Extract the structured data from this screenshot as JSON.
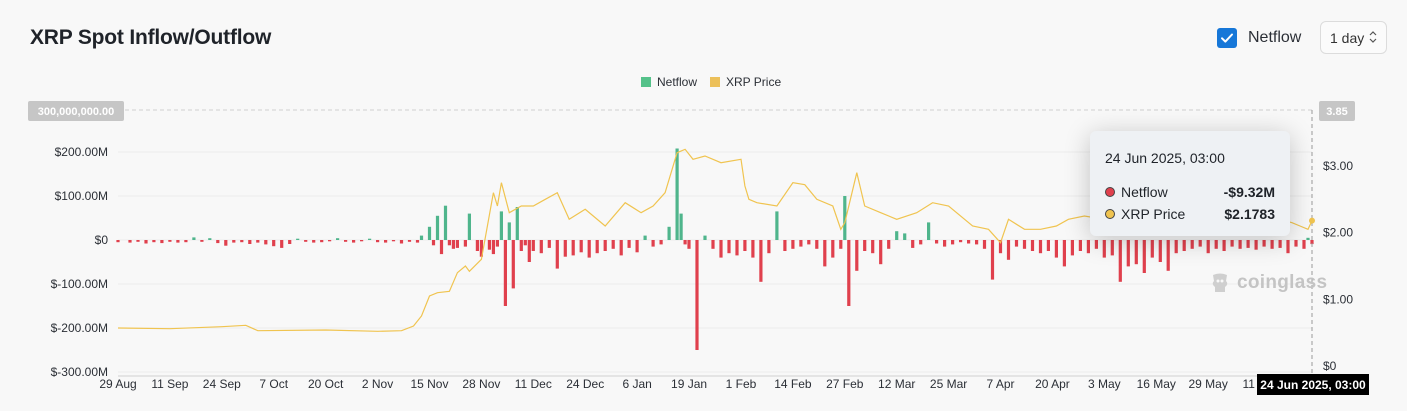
{
  "header": {
    "title": "XRP Spot Inflow/Outflow",
    "netflow_toggle_label": "Netflow",
    "interval": "1 day"
  },
  "colors": {
    "inflow": "#4fb58c",
    "outflow": "#e0404d",
    "price": "#f0c450",
    "netflow_legend": "#55c28a",
    "price_legend": "#ecc05a",
    "accent": "#1677d8"
  },
  "tooltip": {
    "date": "24 Jun 2025, 03:00",
    "rows": [
      {
        "name": "Netflow",
        "value": "-$9.32M",
        "dot": "#e0404d"
      },
      {
        "name": "XRP Price",
        "value": "$2.1783",
        "dot": "#f0c450"
      }
    ]
  },
  "watermark": "coinglass",
  "chart_data": {
    "type": "bar",
    "legend": [
      "Netflow",
      "XRP Price"
    ],
    "legend_position": "top-center",
    "grid": true,
    "y_left": {
      "ticks": [
        "$200.00M",
        "$100.00M",
        "$0",
        "$-100.00M",
        "$-200.00M",
        "$-300.00M"
      ],
      "tick_values": [
        200,
        100,
        0,
        -100,
        -200,
        -300
      ],
      "range": [
        -300,
        300
      ],
      "top_marker": "300,000,000.00",
      "unit": "M USD"
    },
    "y_right": {
      "ticks": [
        "$3.00",
        "$2.00",
        "$1.00",
        "$0"
      ],
      "tick_values": [
        3,
        2,
        1,
        0
      ],
      "range": [
        0,
        3.85
      ],
      "top_marker": "3.85"
    },
    "x_axis": {
      "range": [
        "2024-08-29",
        "2025-06-24"
      ],
      "ticks": [
        {
          "label": "29 Aug",
          "date": "2024-08-29"
        },
        {
          "label": "11 Sep",
          "date": "2024-09-11"
        },
        {
          "label": "24 Sep",
          "date": "2024-09-24"
        },
        {
          "label": "7 Oct",
          "date": "2024-10-07"
        },
        {
          "label": "20 Oct",
          "date": "2024-10-20"
        },
        {
          "label": "2 Nov",
          "date": "2024-11-02"
        },
        {
          "label": "15 Nov",
          "date": "2024-11-15"
        },
        {
          "label": "28 Nov",
          "date": "2024-11-28"
        },
        {
          "label": "11 Dec",
          "date": "2024-12-11"
        },
        {
          "label": "24 Dec",
          "date": "2024-12-24"
        },
        {
          "label": "6 Jan",
          "date": "2025-01-06"
        },
        {
          "label": "19 Jan",
          "date": "2025-01-19"
        },
        {
          "label": "1 Feb",
          "date": "2025-02-01"
        },
        {
          "label": "14 Feb",
          "date": "2025-02-14"
        },
        {
          "label": "27 Feb",
          "date": "2025-02-27"
        },
        {
          "label": "12 Mar",
          "date": "2025-03-12"
        },
        {
          "label": "25 Mar",
          "date": "2025-03-25"
        },
        {
          "label": "7 Apr",
          "date": "2025-04-07"
        },
        {
          "label": "20 Apr",
          "date": "2025-04-20"
        },
        {
          "label": "3 May",
          "date": "2025-05-03"
        },
        {
          "label": "16 May",
          "date": "2025-05-16"
        },
        {
          "label": "29 May",
          "date": "2025-05-29"
        },
        {
          "label": "11 Jun",
          "date": "2025-06-11"
        }
      ],
      "hover_label": "24 Jun 2025, 03:00"
    },
    "series": [
      {
        "name": "Netflow",
        "kind": "bar",
        "unit": "M USD",
        "points": [
          [
            "2024-08-29",
            -5
          ],
          [
            "2024-09-01",
            -6
          ],
          [
            "2024-09-03",
            -4
          ],
          [
            "2024-09-05",
            -8
          ],
          [
            "2024-09-07",
            -5
          ],
          [
            "2024-09-09",
            -7
          ],
          [
            "2024-09-11",
            -4
          ],
          [
            "2024-09-13",
            -6
          ],
          [
            "2024-09-15",
            -5
          ],
          [
            "2024-09-17",
            6
          ],
          [
            "2024-09-19",
            -4
          ],
          [
            "2024-09-21",
            4
          ],
          [
            "2024-09-23",
            -7
          ],
          [
            "2024-09-25",
            -13
          ],
          [
            "2024-09-27",
            -6
          ],
          [
            "2024-09-29",
            -5
          ],
          [
            "2024-10-01",
            -9
          ],
          [
            "2024-10-03",
            -6
          ],
          [
            "2024-10-05",
            -10
          ],
          [
            "2024-10-07",
            -14
          ],
          [
            "2024-10-09",
            -18
          ],
          [
            "2024-10-11",
            -9
          ],
          [
            "2024-10-13",
            3
          ],
          [
            "2024-10-15",
            -4
          ],
          [
            "2024-10-17",
            -6
          ],
          [
            "2024-10-19",
            -5
          ],
          [
            "2024-10-21",
            -3
          ],
          [
            "2024-10-23",
            4
          ],
          [
            "2024-10-25",
            -4
          ],
          [
            "2024-10-27",
            -6
          ],
          [
            "2024-10-29",
            -3
          ],
          [
            "2024-10-31",
            3
          ],
          [
            "2024-11-02",
            -5
          ],
          [
            "2024-11-04",
            -6
          ],
          [
            "2024-11-06",
            -3
          ],
          [
            "2024-11-08",
            -8
          ],
          [
            "2024-11-10",
            -4
          ],
          [
            "2024-11-12",
            -6
          ],
          [
            "2024-11-13",
            10
          ],
          [
            "2024-11-15",
            30
          ],
          [
            "2024-11-16",
            -12
          ],
          [
            "2024-11-17",
            55
          ],
          [
            "2024-11-18",
            -32
          ],
          [
            "2024-11-19",
            78
          ],
          [
            "2024-11-20",
            -12
          ],
          [
            "2024-11-21",
            -20
          ],
          [
            "2024-11-22",
            -18
          ],
          [
            "2024-11-24",
            -15
          ],
          [
            "2024-11-25",
            60
          ],
          [
            "2024-11-27",
            -25
          ],
          [
            "2024-11-28",
            -38
          ],
          [
            "2024-11-30",
            -22
          ],
          [
            "2024-12-01",
            -32
          ],
          [
            "2024-12-02",
            -15
          ],
          [
            "2024-12-03",
            65
          ],
          [
            "2024-12-04",
            -150
          ],
          [
            "2024-12-05",
            40
          ],
          [
            "2024-12-06",
            -110
          ],
          [
            "2024-12-07",
            75
          ],
          [
            "2024-12-08",
            -25
          ],
          [
            "2024-12-09",
            -12
          ],
          [
            "2024-12-10",
            -50
          ],
          [
            "2024-12-11",
            -25
          ],
          [
            "2024-12-13",
            -30
          ],
          [
            "2024-12-15",
            -18
          ],
          [
            "2024-12-17",
            -65
          ],
          [
            "2024-12-19",
            -38
          ],
          [
            "2024-12-21",
            -35
          ],
          [
            "2024-12-23",
            -28
          ],
          [
            "2024-12-25",
            -40
          ],
          [
            "2024-12-27",
            -30
          ],
          [
            "2024-12-29",
            -25
          ],
          [
            "2024-12-31",
            -20
          ],
          [
            "2025-01-02",
            -35
          ],
          [
            "2025-01-04",
            -18
          ],
          [
            "2025-01-06",
            -28
          ],
          [
            "2025-01-08",
            10
          ],
          [
            "2025-01-10",
            -15
          ],
          [
            "2025-01-12",
            -10
          ],
          [
            "2025-01-14",
            30
          ],
          [
            "2025-01-16",
            208
          ],
          [
            "2025-01-17",
            60
          ],
          [
            "2025-01-18",
            -10
          ],
          [
            "2025-01-19",
            -20
          ],
          [
            "2025-01-21",
            -250
          ],
          [
            "2025-01-23",
            10
          ],
          [
            "2025-01-25",
            -20
          ],
          [
            "2025-01-27",
            -40
          ],
          [
            "2025-01-29",
            -30
          ],
          [
            "2025-01-31",
            -35
          ],
          [
            "2025-02-02",
            -25
          ],
          [
            "2025-02-04",
            -40
          ],
          [
            "2025-02-06",
            -95
          ],
          [
            "2025-02-08",
            -30
          ],
          [
            "2025-02-10",
            65
          ],
          [
            "2025-02-12",
            -25
          ],
          [
            "2025-02-14",
            -20
          ],
          [
            "2025-02-16",
            -15
          ],
          [
            "2025-02-18",
            -10
          ],
          [
            "2025-02-20",
            -20
          ],
          [
            "2025-02-22",
            -60
          ],
          [
            "2025-02-24",
            -40
          ],
          [
            "2025-02-26",
            -20
          ],
          [
            "2025-02-27",
            100
          ],
          [
            "2025-02-28",
            -150
          ],
          [
            "2025-03-02",
            -70
          ],
          [
            "2025-03-04",
            -25
          ],
          [
            "2025-03-06",
            -30
          ],
          [
            "2025-03-08",
            -55
          ],
          [
            "2025-03-10",
            -20
          ],
          [
            "2025-03-12",
            20
          ],
          [
            "2025-03-14",
            15
          ],
          [
            "2025-03-16",
            -18
          ],
          [
            "2025-03-18",
            -10
          ],
          [
            "2025-03-20",
            40
          ],
          [
            "2025-03-22",
            -8
          ],
          [
            "2025-03-24",
            -15
          ],
          [
            "2025-03-26",
            -10
          ],
          [
            "2025-03-28",
            -5
          ],
          [
            "2025-03-30",
            -8
          ],
          [
            "2025-04-01",
            -10
          ],
          [
            "2025-04-03",
            -20
          ],
          [
            "2025-04-05",
            -90
          ],
          [
            "2025-04-07",
            -30
          ],
          [
            "2025-04-09",
            -45
          ],
          [
            "2025-04-11",
            -15
          ],
          [
            "2025-04-13",
            -20
          ],
          [
            "2025-04-15",
            -25
          ],
          [
            "2025-04-17",
            -30
          ],
          [
            "2025-04-19",
            -25
          ],
          [
            "2025-04-21",
            -40
          ],
          [
            "2025-04-23",
            -60
          ],
          [
            "2025-04-25",
            -35
          ],
          [
            "2025-04-27",
            -25
          ],
          [
            "2025-04-29",
            -30
          ],
          [
            "2025-05-01",
            -20
          ],
          [
            "2025-05-03",
            -40
          ],
          [
            "2025-05-05",
            -35
          ],
          [
            "2025-05-07",
            -95
          ],
          [
            "2025-05-09",
            -60
          ],
          [
            "2025-05-11",
            -55
          ],
          [
            "2025-05-13",
            -75
          ],
          [
            "2025-05-15",
            -40
          ],
          [
            "2025-05-17",
            -50
          ],
          [
            "2025-05-19",
            -70
          ],
          [
            "2025-05-21",
            -30
          ],
          [
            "2025-05-23",
            -25
          ],
          [
            "2025-05-25",
            -20
          ],
          [
            "2025-05-27",
            -15
          ],
          [
            "2025-05-29",
            -30
          ],
          [
            "2025-05-31",
            -20
          ],
          [
            "2025-06-02",
            -25
          ],
          [
            "2025-06-04",
            -15
          ],
          [
            "2025-06-06",
            -20
          ],
          [
            "2025-06-08",
            -18
          ],
          [
            "2025-06-10",
            -22
          ],
          [
            "2025-06-12",
            -15
          ],
          [
            "2025-06-14",
            -20
          ],
          [
            "2025-06-16",
            -18
          ],
          [
            "2025-06-18",
            -30
          ],
          [
            "2025-06-20",
            -15
          ],
          [
            "2025-06-22",
            -20
          ],
          [
            "2025-06-23",
            5
          ],
          [
            "2025-06-24",
            -9.32
          ]
        ]
      },
      {
        "name": "XRP Price",
        "kind": "line",
        "unit": "USD",
        "points": [
          [
            "2024-08-29",
            0.57
          ],
          [
            "2024-09-11",
            0.56
          ],
          [
            "2024-09-24",
            0.59
          ],
          [
            "2024-09-30",
            0.61
          ],
          [
            "2024-10-03",
            0.53
          ],
          [
            "2024-10-20",
            0.54
          ],
          [
            "2024-11-02",
            0.52
          ],
          [
            "2024-11-08",
            0.53
          ],
          [
            "2024-11-11",
            0.6
          ],
          [
            "2024-11-13",
            0.75
          ],
          [
            "2024-11-15",
            1.05
          ],
          [
            "2024-11-17",
            1.1
          ],
          [
            "2024-11-20",
            1.12
          ],
          [
            "2024-11-22",
            1.4
          ],
          [
            "2024-11-24",
            1.5
          ],
          [
            "2024-11-25",
            1.42
          ],
          [
            "2024-11-28",
            1.6
          ],
          [
            "2024-12-01",
            2.6
          ],
          [
            "2024-12-02",
            2.4
          ],
          [
            "2024-12-03",
            2.75
          ],
          [
            "2024-12-05",
            2.3
          ],
          [
            "2024-12-08",
            2.4
          ],
          [
            "2024-12-11",
            2.4
          ],
          [
            "2024-12-14",
            2.5
          ],
          [
            "2024-12-17",
            2.6
          ],
          [
            "2024-12-20",
            2.2
          ],
          [
            "2024-12-24",
            2.35
          ],
          [
            "2024-12-29",
            2.1
          ],
          [
            "2025-01-03",
            2.45
          ],
          [
            "2025-01-07",
            2.3
          ],
          [
            "2025-01-10",
            2.4
          ],
          [
            "2025-01-13",
            2.6
          ],
          [
            "2025-01-16",
            3.2
          ],
          [
            "2025-01-18",
            3.25
          ],
          [
            "2025-01-20",
            3.1
          ],
          [
            "2025-01-23",
            3.15
          ],
          [
            "2025-01-27",
            3.05
          ],
          [
            "2025-02-01",
            3.1
          ],
          [
            "2025-02-02",
            2.7
          ],
          [
            "2025-02-03",
            2.5
          ],
          [
            "2025-02-05",
            2.45
          ],
          [
            "2025-02-10",
            2.4
          ],
          [
            "2025-02-14",
            2.75
          ],
          [
            "2025-02-17",
            2.72
          ],
          [
            "2025-02-20",
            2.5
          ],
          [
            "2025-02-24",
            2.4
          ],
          [
            "2025-02-26",
            2.05
          ],
          [
            "2025-02-27",
            2.15
          ],
          [
            "2025-03-02",
            2.9
          ],
          [
            "2025-03-04",
            2.4
          ],
          [
            "2025-03-08",
            2.3
          ],
          [
            "2025-03-12",
            2.2
          ],
          [
            "2025-03-17",
            2.3
          ],
          [
            "2025-03-21",
            2.45
          ],
          [
            "2025-03-25",
            2.4
          ],
          [
            "2025-03-31",
            2.1
          ],
          [
            "2025-04-04",
            2.05
          ],
          [
            "2025-04-07",
            1.85
          ],
          [
            "2025-04-09",
            2.2
          ],
          [
            "2025-04-13",
            2.05
          ],
          [
            "2025-04-17",
            2.05
          ],
          [
            "2025-04-21",
            2.1
          ],
          [
            "2025-04-24",
            2.2
          ],
          [
            "2025-04-28",
            2.25
          ],
          [
            "2025-05-03",
            2.2
          ],
          [
            "2025-05-08",
            2.3
          ],
          [
            "2025-05-12",
            2.5
          ],
          [
            "2025-05-16",
            2.4
          ],
          [
            "2025-05-21",
            2.35
          ],
          [
            "2025-05-26",
            2.35
          ],
          [
            "2025-05-31",
            2.15
          ],
          [
            "2025-06-06",
            2.2
          ],
          [
            "2025-06-11",
            2.25
          ],
          [
            "2025-06-16",
            2.2
          ],
          [
            "2025-06-19",
            2.15
          ],
          [
            "2025-06-21",
            2.1
          ],
          [
            "2025-06-23",
            2.05
          ],
          [
            "2025-06-24",
            2.18
          ]
        ]
      }
    ]
  }
}
